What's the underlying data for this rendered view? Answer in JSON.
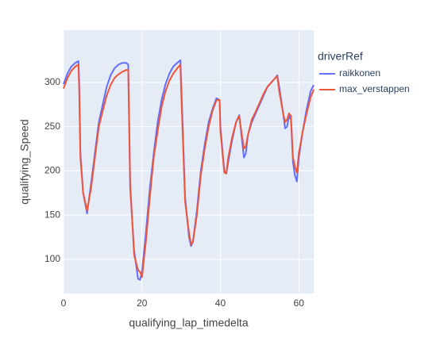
{
  "chart_data": {
    "type": "line",
    "x_label": "qualifying_lap_timedelta",
    "y_label": "qualifying_Speed",
    "legend_title": "driverRef",
    "legend": "right",
    "grid": true,
    "xlim": [
      0,
      63.8
    ],
    "ylim": [
      61.4,
      359
    ],
    "xticks": [
      0,
      20,
      40,
      60
    ],
    "yticks": [
      100,
      150,
      200,
      250,
      300
    ],
    "x": [
      0,
      1,
      2,
      3,
      3.8,
      4,
      4.3,
      5,
      6,
      7,
      8,
      9,
      10,
      11,
      12,
      13,
      14,
      15,
      16,
      16.5,
      17,
      18,
      19,
      19.5,
      20,
      21,
      22,
      23,
      24,
      25,
      26,
      27,
      28,
      29,
      29.8,
      30,
      31,
      32,
      32.5,
      33,
      34,
      35,
      36,
      37,
      38,
      39,
      39.8,
      40,
      41,
      41.5,
      42,
      43,
      44,
      44.8,
      45,
      46,
      46.5,
      47,
      48,
      49,
      50,
      51,
      52,
      53,
      54,
      54.5,
      55,
      56,
      56.5,
      57,
      57.5,
      58,
      58.5,
      59,
      59.5,
      60,
      61,
      62,
      63,
      63.8
    ],
    "series": [
      {
        "name": "raikkonen",
        "color": "#636efa",
        "values": [
          298,
          310,
          318,
          322,
          324,
          300,
          220,
          175,
          152,
          185,
          220,
          255,
          275,
          295,
          308,
          316,
          320,
          322,
          322,
          320,
          180,
          110,
          78,
          77,
          85,
          130,
          180,
          220,
          255,
          280,
          298,
          310,
          318,
          322,
          325,
          300,
          170,
          125,
          115,
          120,
          155,
          200,
          230,
          255,
          270,
          282,
          280,
          250,
          200,
          197,
          210,
          235,
          255,
          263,
          255,
          215,
          220,
          240,
          255,
          265,
          275,
          285,
          295,
          300,
          305,
          308,
          295,
          265,
          248,
          250,
          262,
          258,
          210,
          195,
          188,
          215,
          245,
          270,
          290,
          297
        ]
      },
      {
        "name": "max_verstappen",
        "color": "#EF553B",
        "values": [
          293,
          305,
          313,
          318,
          320,
          290,
          215,
          175,
          155,
          180,
          215,
          250,
          268,
          285,
          297,
          305,
          309,
          312,
          314,
          314,
          185,
          105,
          88,
          86,
          80,
          120,
          170,
          215,
          245,
          272,
          290,
          302,
          310,
          316,
          320,
          290,
          165,
          130,
          117,
          120,
          150,
          195,
          225,
          250,
          268,
          280,
          280,
          245,
          198,
          197,
          215,
          238,
          255,
          262,
          255,
          225,
          228,
          240,
          258,
          267,
          277,
          287,
          295,
          300,
          305,
          307,
          290,
          265,
          255,
          258,
          265,
          262,
          215,
          205,
          198,
          220,
          245,
          265,
          283,
          292
        ]
      }
    ]
  }
}
